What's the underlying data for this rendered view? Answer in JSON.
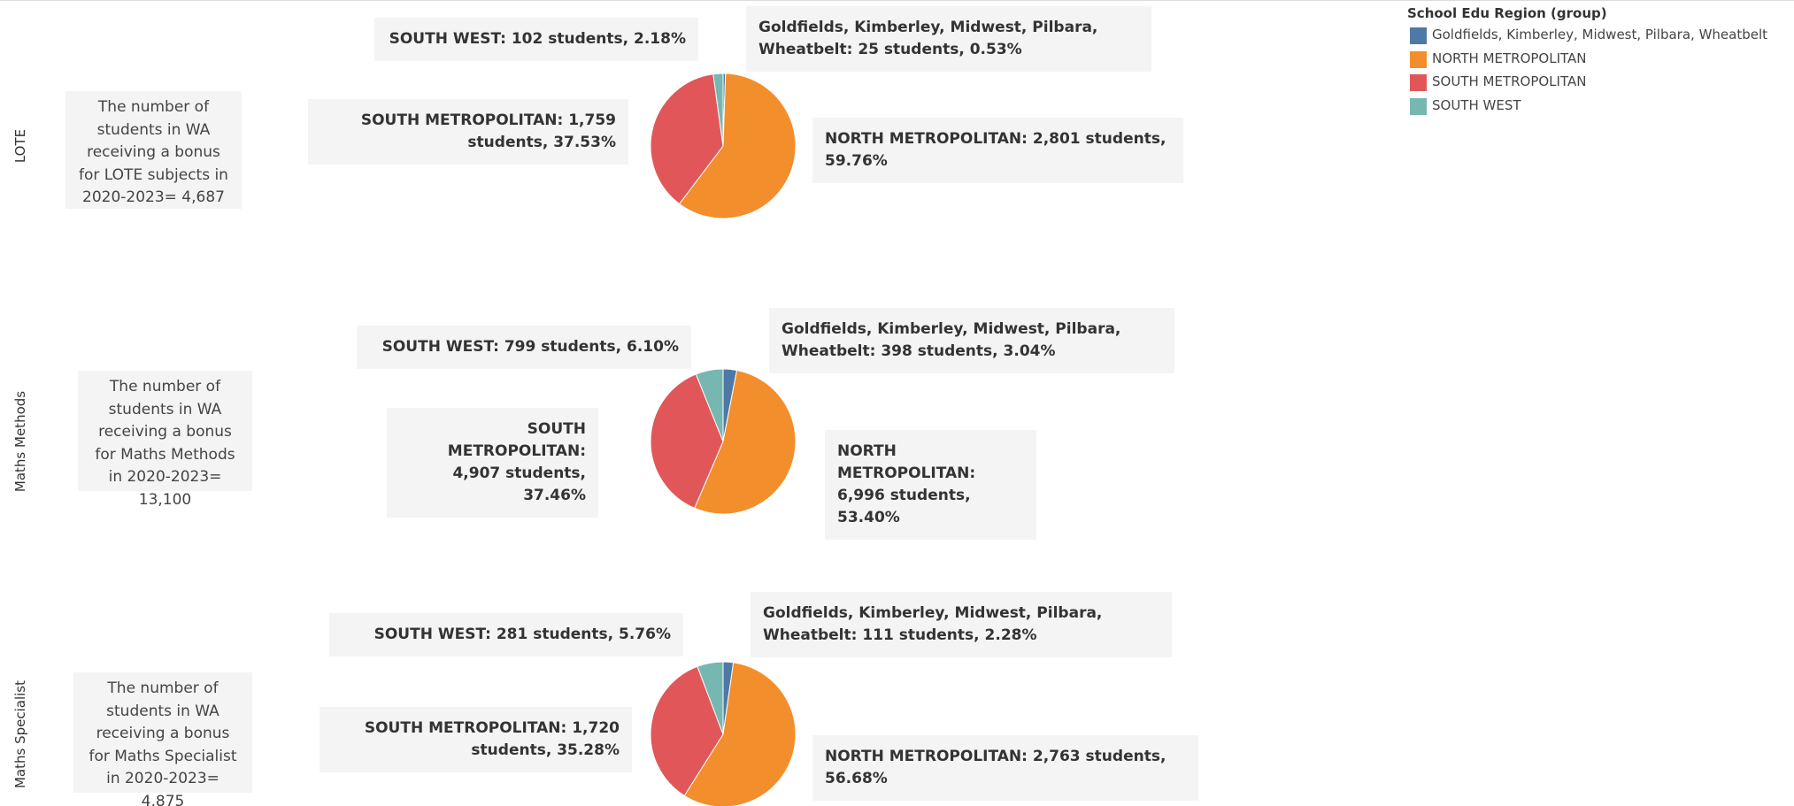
{
  "legend": {
    "title": "School Edu Region (group)"
  },
  "chart_data": [
    {
      "type": "pie",
      "row_label": "LOTE",
      "annotation": "The number of students in WA receiving a bonus for LOTE subjects in 2020-2023= 4,687",
      "categories": [
        "Goldfields, Kimberley, Midwest, Pilbara, Wheatbelt",
        "NORTH METROPOLITAN",
        "SOUTH METROPOLITAN",
        "SOUTH WEST"
      ],
      "values": [
        25,
        2801,
        1759,
        102
      ],
      "value_labels": [
        "Goldfields, Kimberley, Midwest, Pilbara, Wheatbelt: 25 students, 0.53%",
        "NORTH METROPOLITAN: 2,801 students, 59.76%",
        "SOUTH METROPOLITAN: 1,759 students, 37.53%",
        "SOUTH WEST: 102 students, 2.18%"
      ],
      "colors": [
        "#4e79a7",
        "#f28e2b",
        "#e15759",
        "#76b7b2"
      ]
    },
    {
      "type": "pie",
      "row_label": "Maths Methods",
      "annotation": "The number of students in WA receiving a bonus for Maths Methods in 2020-2023= 13,100",
      "categories": [
        "Goldfields, Kimberley, Midwest, Pilbara, Wheatbelt",
        "NORTH METROPOLITAN",
        "SOUTH METROPOLITAN",
        "SOUTH WEST"
      ],
      "values": [
        398,
        6996,
        4907,
        799
      ],
      "value_labels": [
        "Goldfields, Kimberley, Midwest, Pilbara, Wheatbelt: 398 students, 3.04%",
        "NORTH METROPOLITAN: 6,996 students, 53.40%",
        "SOUTH METROPOLITAN: 4,907 students, 37.46%",
        "SOUTH WEST: 799 students, 6.10%"
      ],
      "colors": [
        "#4e79a7",
        "#f28e2b",
        "#e15759",
        "#76b7b2"
      ]
    },
    {
      "type": "pie",
      "row_label": "Maths Specialist",
      "annotation": "The number of students in WA receiving a bonus for Maths Specialist in 2020-2023= 4,875",
      "categories": [
        "Goldfields, Kimberley, Midwest, Pilbara, Wheatbelt",
        "NORTH METROPOLITAN",
        "SOUTH METROPOLITAN",
        "SOUTH WEST"
      ],
      "values": [
        111,
        2763,
        1720,
        281
      ],
      "value_labels": [
        "Goldfields, Kimberley, Midwest, Pilbara, Wheatbelt: 111 students, 2.28%",
        "NORTH METROPOLITAN: 2,763 students, 56.68%",
        "SOUTH METROPOLITAN: 1,720 students, 35.28%",
        "SOUTH WEST: 281 students, 5.76%"
      ],
      "colors": [
        "#4e79a7",
        "#f28e2b",
        "#e15759",
        "#76b7b2"
      ]
    }
  ]
}
